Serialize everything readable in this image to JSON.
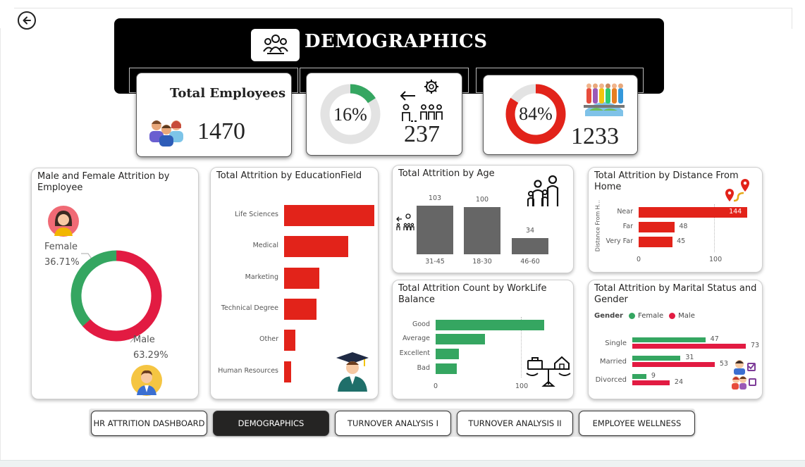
{
  "header": {
    "title": "DEMOGRAPHICS",
    "back_icon": "back-arrow-icon",
    "title_icon": "people-group-icon"
  },
  "kpis": {
    "total_employees": {
      "label": "Total Employees",
      "value": "1470",
      "icon": "employees-icon"
    },
    "attrition": {
      "percent_label": "16%",
      "percent": 16,
      "value": "237",
      "icon": "employee-leaving-icon",
      "ring_color": "#35a661"
    },
    "retained": {
      "percent_label": "84%",
      "percent": 84,
      "value": "1233",
      "icon": "global-workforce-icon",
      "ring_color": "#e2231a"
    }
  },
  "gender_card": {
    "title": "Male and Female Attrition by Employee",
    "female_label": "Female",
    "female_pct": "36.71%",
    "male_label": "Male",
    "male_pct": "63.29%",
    "female_value": 36.71,
    "male_value": 63.29,
    "female_color": "#35a661",
    "male_color": "#e21b42"
  },
  "education_card": {
    "title": "Total Attrition by EducationField",
    "icon": "graduate-icon"
  },
  "age_card": {
    "title": "Total Attrition by Age",
    "icon": "family-icon"
  },
  "distance_card": {
    "title": "Total Attrition by Distance From Home",
    "axis_title": "Distance From H...",
    "icon": "route-pin-icon"
  },
  "worklife_card": {
    "title": "Total Attrition Count by WorkLife Balance",
    "icon": "work-home-balance-icon"
  },
  "marital_card": {
    "title": "Total Attrition by Marital Status and Gender",
    "legend_title": "Gender",
    "legend_female": "Female",
    "legend_male": "Male",
    "icon": "couple-checklist-icon"
  },
  "chart_data": [
    {
      "type": "pie",
      "title": "Male and Female Attrition by Employee",
      "categories": [
        "Female",
        "Male"
      ],
      "values": [
        36.71,
        63.29
      ]
    },
    {
      "type": "bar",
      "title": "Total Attrition by EducationField",
      "categories": [
        "Life Sciences",
        "Medical",
        "Marketing",
        "Technical Degree",
        "Other",
        "Human Resources"
      ],
      "values": [
        89,
        63,
        35,
        32,
        11,
        7
      ]
    },
    {
      "type": "bar",
      "title": "Total Attrition by Age",
      "categories": [
        "31-45",
        "18-30",
        "46-60"
      ],
      "values": [
        103,
        100,
        34
      ]
    },
    {
      "type": "bar",
      "title": "Total Attrition by Distance From Home",
      "categories": [
        "Near",
        "Far",
        "Very Far"
      ],
      "values": [
        144,
        48,
        45
      ],
      "xticks": [
        "0",
        "100"
      ]
    },
    {
      "type": "bar",
      "title": "Total Attrition Count by WorkLife Balance",
      "categories": [
        "Good",
        "Average",
        "Excellent",
        "Bad"
      ],
      "values": [
        127,
        58,
        27,
        25
      ],
      "xticks": [
        "0",
        "100"
      ]
    },
    {
      "type": "bar",
      "title": "Total Attrition by Marital Status and Gender",
      "categories": [
        "Single",
        "Married",
        "Divorced"
      ],
      "series": [
        {
          "name": "Female",
          "values": [
            47,
            31,
            9
          ]
        },
        {
          "name": "Male",
          "values": [
            73,
            53,
            24
          ]
        }
      ]
    }
  ],
  "nav": [
    {
      "label": "HR ATTRITION DASHBOARD",
      "active": false
    },
    {
      "label": "DEMOGRAPHICS",
      "active": true
    },
    {
      "label": "TURNOVER ANALYSIS I",
      "active": false
    },
    {
      "label": "TURNOVER ANALYSIS II",
      "active": false
    },
    {
      "label": "EMPLOYEE WELLNESS",
      "active": false
    }
  ]
}
